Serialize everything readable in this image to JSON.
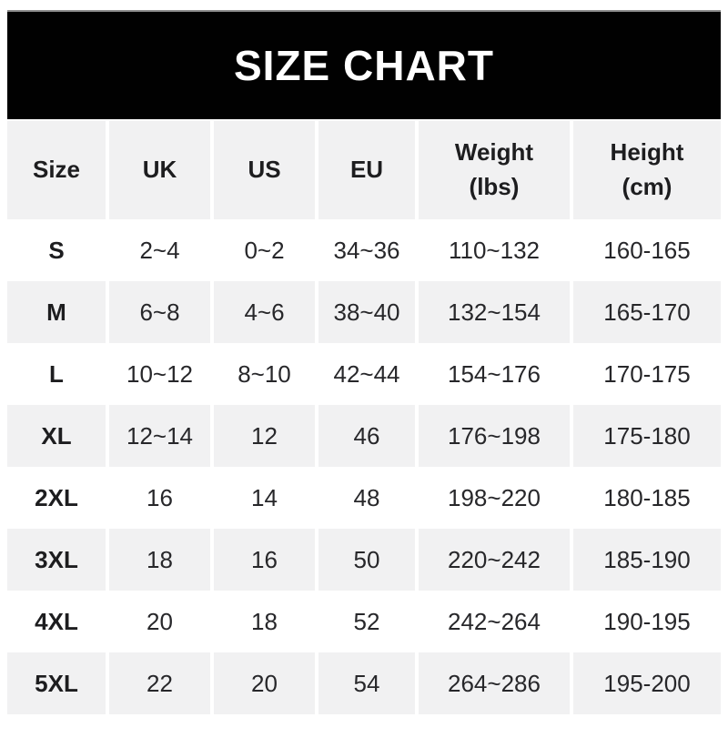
{
  "banner": {
    "title": "SIZE CHART"
  },
  "table": {
    "columns": [
      {
        "label": "Size"
      },
      {
        "label": "UK"
      },
      {
        "label": "US"
      },
      {
        "label": "EU"
      },
      {
        "label": "Weight\n(lbs)"
      },
      {
        "label": "Height\n(cm)"
      }
    ]
  },
  "chart_data": {
    "type": "table",
    "title": "SIZE CHART",
    "columns": [
      "Size",
      "UK",
      "US",
      "EU",
      "Weight (lbs)",
      "Height (cm)"
    ],
    "rows": [
      [
        "S",
        "2~4",
        "0~2",
        "34~36",
        "110~132",
        "160-165"
      ],
      [
        "M",
        "6~8",
        "4~6",
        "38~40",
        "132~154",
        "165-170"
      ],
      [
        "L",
        "10~12",
        "8~10",
        "42~44",
        "154~176",
        "170-175"
      ],
      [
        "XL",
        "12~14",
        "12",
        "46",
        "176~198",
        "175-180"
      ],
      [
        "2XL",
        "16",
        "14",
        "48",
        "198~220",
        "180-185"
      ],
      [
        "3XL",
        "18",
        "16",
        "50",
        "220~242",
        "185-190"
      ],
      [
        "4XL",
        "20",
        "18",
        "52",
        "242~264",
        "190-195"
      ],
      [
        "5XL",
        "22",
        "20",
        "54",
        "264~286",
        "195-200"
      ]
    ],
    "layout": {
      "stripe_pattern": "alternating rows, header + even-numbered data rows shaded",
      "range_separator_body": "~ (tilde) in UK/US/EU/Weight, - (hyphen) in Height"
    }
  },
  "colors": {
    "banner_background": "#010101",
    "banner_edge": "#8d8d8d",
    "banner_text": "#ffffff",
    "stripe_background": "#f1f1f2",
    "row_background": "#ffffff",
    "header_text": "#1d1d1f",
    "cell_text": "#27272a"
  }
}
